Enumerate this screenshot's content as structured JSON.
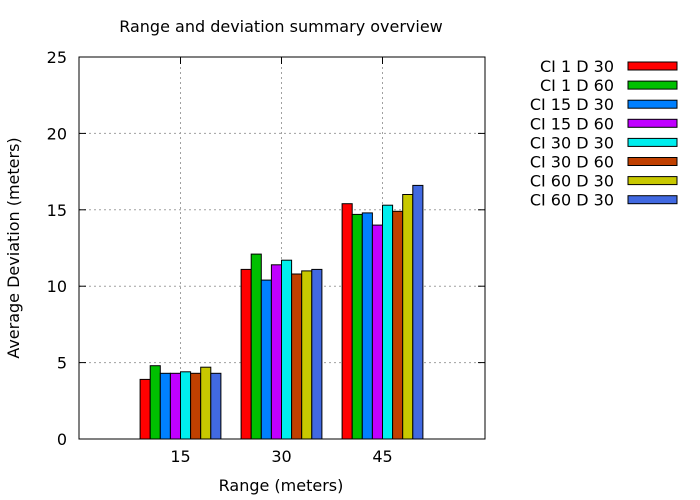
{
  "chart_data": {
    "type": "bar",
    "title": "Range and deviation summary overview",
    "xlabel": "Range (meters)",
    "ylabel": "Average Deviation (meters)",
    "categories": [
      "15",
      "30",
      "45"
    ],
    "ylim": [
      0,
      25
    ],
    "yticks": [
      0,
      5,
      10,
      15,
      20,
      25
    ],
    "grid": true,
    "legend_position": "right",
    "series": [
      {
        "name": "CI 1 D 30",
        "color": "#ff0000",
        "values": [
          3.9,
          11.1,
          15.4
        ]
      },
      {
        "name": "CI 1 D 60",
        "color": "#00c000",
        "values": [
          4.8,
          12.1,
          14.7
        ]
      },
      {
        "name": "CI 15 D 30",
        "color": "#0080ff",
        "values": [
          4.3,
          10.4,
          14.8
        ]
      },
      {
        "name": "CI 15 D 60",
        "color": "#c000ff",
        "values": [
          4.3,
          11.4,
          14.0
        ]
      },
      {
        "name": "CI 30 D 30",
        "color": "#00eeee",
        "values": [
          4.4,
          11.7,
          15.3
        ]
      },
      {
        "name": "CI 30 D 60",
        "color": "#c04000",
        "values": [
          4.3,
          10.8,
          14.9
        ]
      },
      {
        "name": "CI 60 D 30",
        "color": "#c8c800",
        "values": [
          4.7,
          11.0,
          16.0
        ]
      },
      {
        "name": "CI 60 D 30",
        "color": "#4169e1",
        "values": [
          4.3,
          11.1,
          16.6
        ]
      }
    ]
  }
}
